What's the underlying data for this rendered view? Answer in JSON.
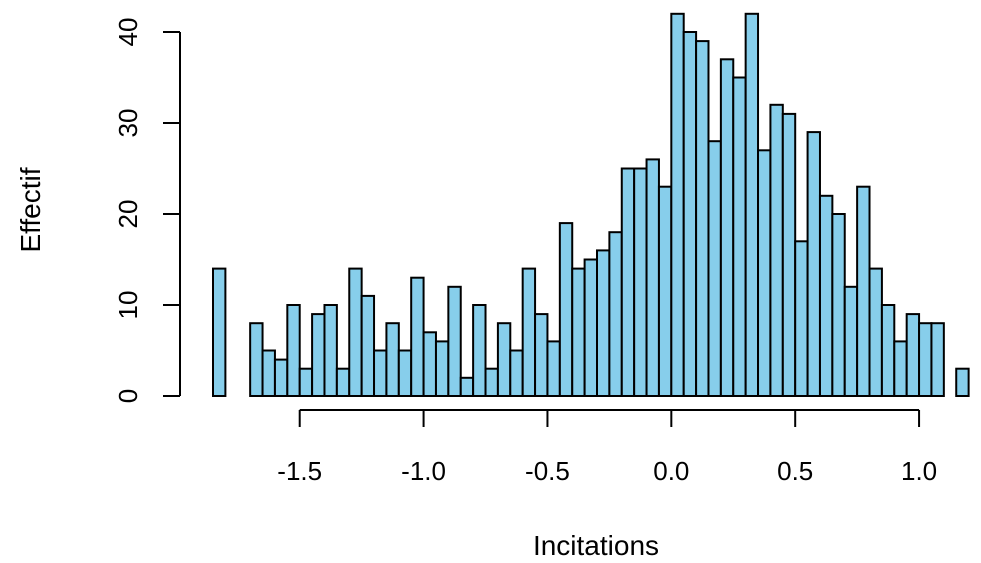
{
  "chart_data": {
    "type": "bar",
    "title": "",
    "xlabel": "Incitations",
    "ylabel": "Effectif",
    "bar_color": "#87CEEB",
    "edge_color": "#000000",
    "bin_width": 0.05,
    "first_bin_start": -1.85,
    "xlim": [
      -1.85,
      1.25
    ],
    "ylim": [
      0,
      42
    ],
    "x_ticks": [
      -1.5,
      -1.0,
      -0.5,
      0.0,
      0.5,
      1.0
    ],
    "x_tick_labels": [
      "-1.5",
      "-1.0",
      "-0.5",
      "0.0",
      "0.5",
      "1.0"
    ],
    "y_ticks": [
      0,
      10,
      20,
      30,
      40
    ],
    "y_tick_labels": [
      "0",
      "10",
      "20",
      "30",
      "40"
    ],
    "grid": false,
    "values": [
      14,
      0,
      0,
      8,
      5,
      4,
      10,
      3,
      9,
      10,
      3,
      14,
      11,
      5,
      8,
      5,
      13,
      7,
      6,
      12,
      2,
      10,
      3,
      8,
      5,
      14,
      9,
      6,
      19,
      14,
      15,
      16,
      18,
      25,
      25,
      26,
      23,
      42,
      40,
      39,
      28,
      37,
      35,
      42,
      27,
      32,
      31,
      17,
      29,
      22,
      20,
      12,
      23,
      14,
      10,
      6,
      9,
      8,
      8,
      0,
      3
    ]
  }
}
